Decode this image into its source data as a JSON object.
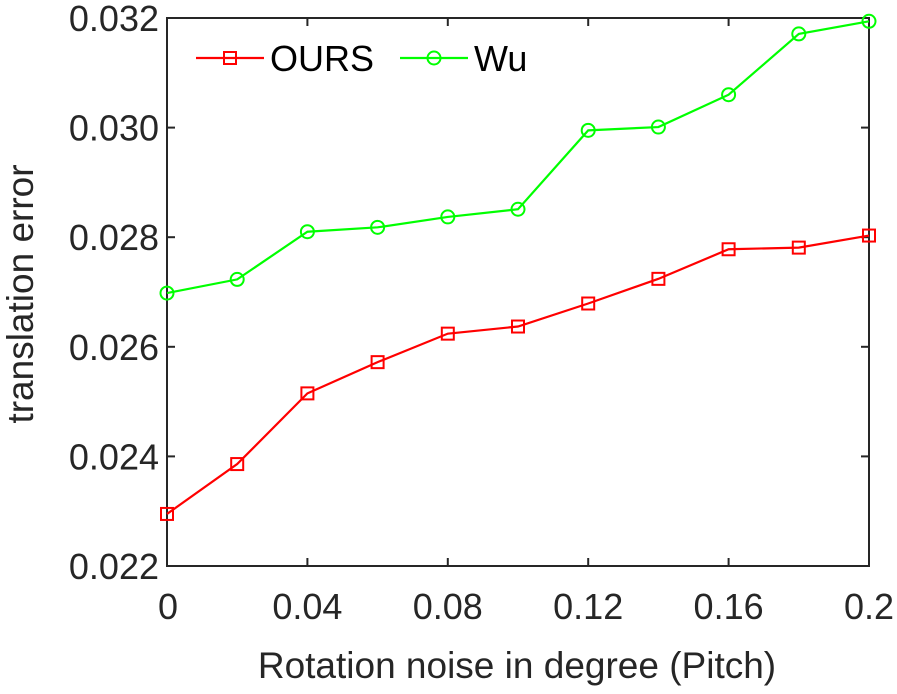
{
  "chart_data": {
    "type": "line",
    "title": "",
    "xlabel": "Rotation noise in degree (Pitch)",
    "ylabel": "translation error",
    "x": [
      0,
      0.02,
      0.04,
      0.06,
      0.08,
      0.1,
      0.12,
      0.14,
      0.16,
      0.18,
      0.2
    ],
    "xlim": [
      0,
      0.2
    ],
    "ylim": [
      0.022,
      0.032
    ],
    "xticks": [
      "0",
      "0.04",
      "0.08",
      "0.12",
      "0.16",
      "0.2"
    ],
    "xtick_values": [
      0,
      0.04,
      0.08,
      0.12,
      0.16,
      0.2
    ],
    "yticks": [
      "0.022",
      "0.024",
      "0.026",
      "0.028",
      "0.030",
      "0.032"
    ],
    "ytick_values": [
      0.022,
      0.024,
      0.026,
      0.028,
      0.03,
      0.032
    ],
    "grid": false,
    "legend_position": "top-left",
    "series": [
      {
        "name": "OURS",
        "color": "#ff0000",
        "marker": "square",
        "values": [
          0.02295,
          0.02386,
          0.02515,
          0.02572,
          0.02624,
          0.02637,
          0.02679,
          0.02724,
          0.02778,
          0.02781,
          0.02803
        ]
      },
      {
        "name": "Wu",
        "color": "#00ff00",
        "marker": "circle",
        "values": [
          0.02698,
          0.02723,
          0.0281,
          0.02818,
          0.02837,
          0.02851,
          0.02995,
          0.03001,
          0.0306,
          0.03171,
          0.03194
        ]
      }
    ]
  }
}
